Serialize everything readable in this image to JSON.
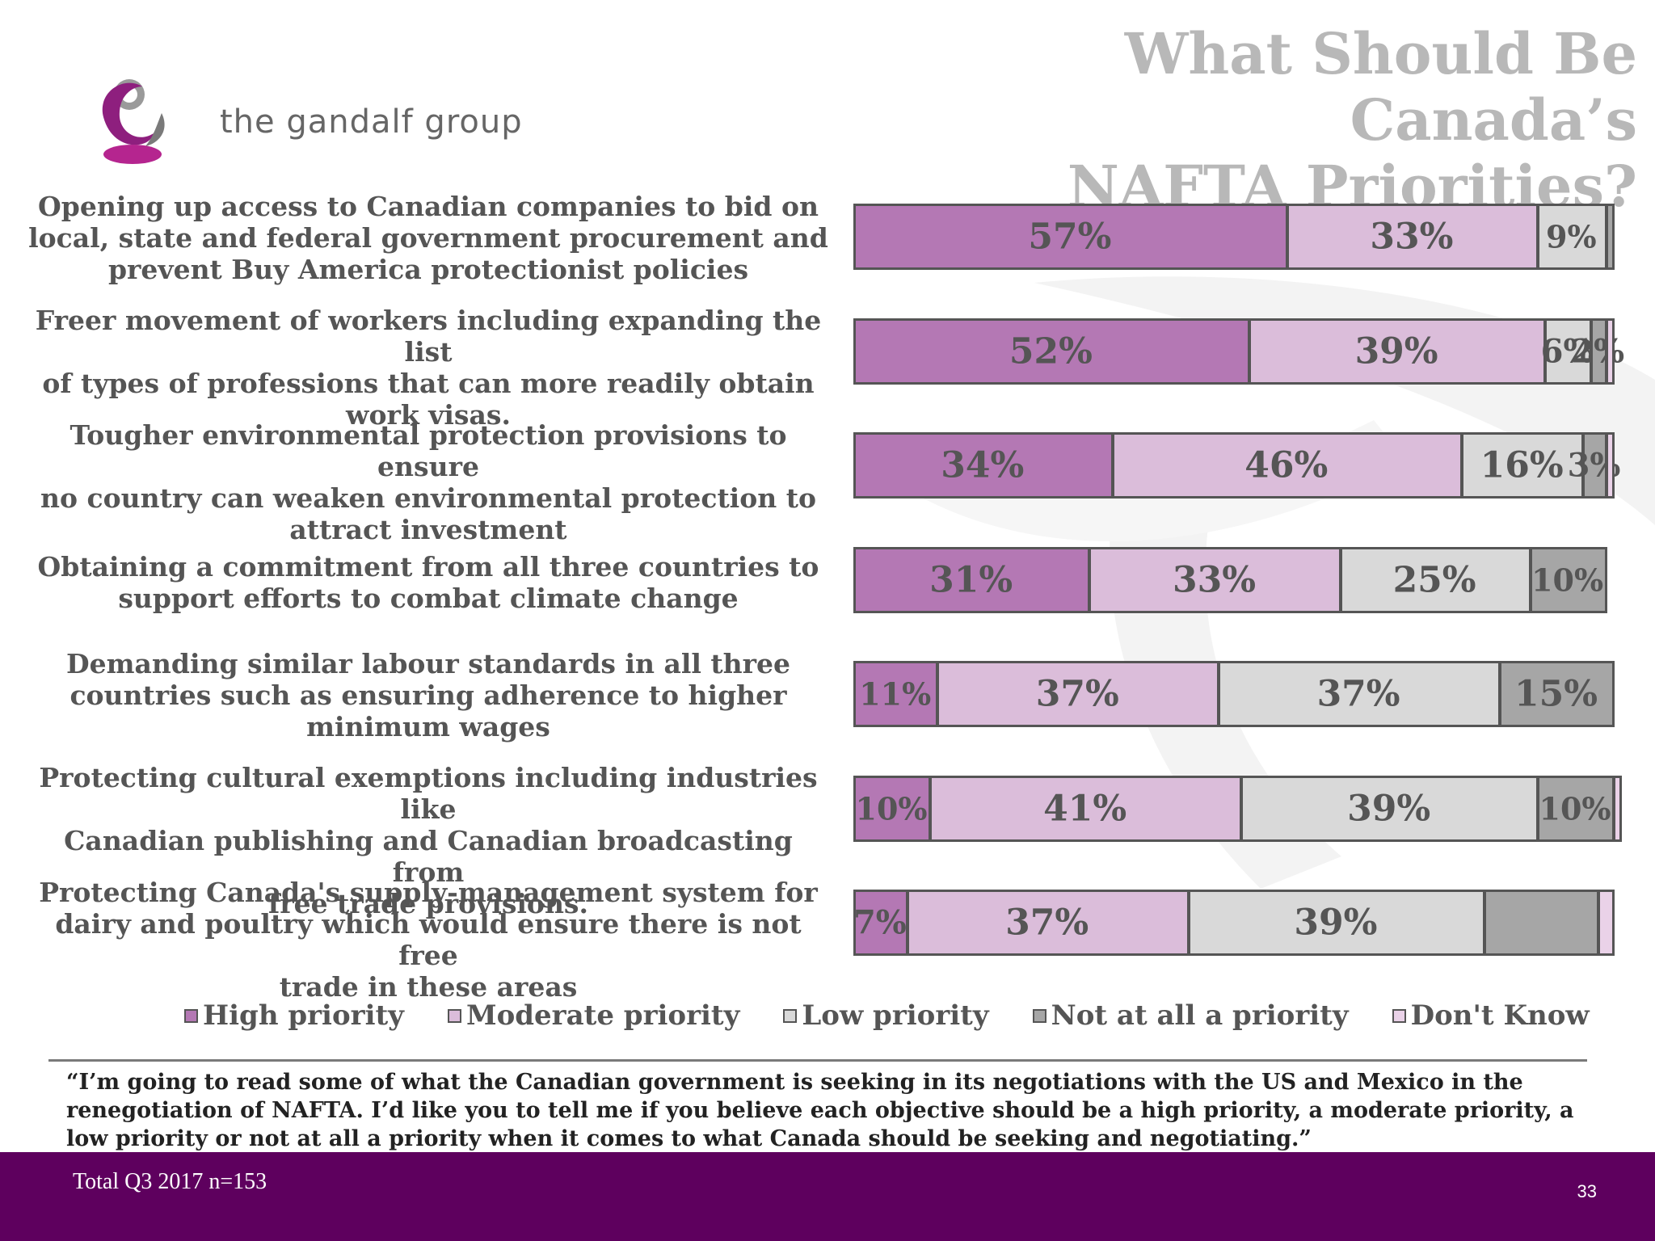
{
  "title_line1": "What Should Be Canada’s",
  "title_line2": "NAFTA Priorities?",
  "logo": {
    "text": "the gandalf group",
    "colors": {
      "purple": "#8e1f7e",
      "gray": "#7a7a7a",
      "magenta": "#b5258f"
    }
  },
  "chart_data": {
    "type": "bar",
    "orientation": "horizontal",
    "stacked": true,
    "categories": [
      [
        "Opening up access to Canadian companies to bid on",
        "local, state and federal government procurement and",
        "prevent Buy America protectionist policies"
      ],
      [
        "Freer movement of workers including expanding the list",
        "of types of professions that can more readily obtain",
        "work visas."
      ],
      [
        "Tougher environmental protection provisions to ensure",
        "no country can weaken environmental protection to",
        "attract investment"
      ],
      [
        "Obtaining a commitment from all three countries to",
        "support efforts to combat climate change"
      ],
      [
        "Demanding similar labour standards in all three",
        "countries such as ensuring adherence to higher",
        "minimum wages"
      ],
      [
        "Protecting cultural exemptions including industries like",
        "Canadian publishing and Canadian broadcasting from",
        "free trade provisions."
      ],
      [
        "Protecting Canada's supply-management system for",
        "dairy and poultry which would ensure there is not free",
        "trade in these areas"
      ]
    ],
    "series": [
      {
        "name": "High priority",
        "color": "#b478b4",
        "values": [
          57,
          52,
          34,
          31,
          11,
          10,
          7
        ],
        "labels": [
          "57%",
          "52%",
          "34%",
          "31%",
          "11%",
          "10%",
          "7%"
        ]
      },
      {
        "name": "Moderate priority",
        "color": "#dbbdda",
        "values": [
          33,
          39,
          46,
          33,
          37,
          41,
          37
        ],
        "labels": [
          "33%",
          "39%",
          "46%",
          "33%",
          "37%",
          "41%",
          "37%"
        ]
      },
      {
        "name": "Low priority",
        "color": "#d9d9d9",
        "values": [
          9,
          6,
          16,
          25,
          37,
          39,
          39
        ],
        "labels": [
          "9%",
          "6%",
          "16%",
          "25%",
          "37%",
          "39%",
          "39%"
        ]
      },
      {
        "name": "Not at all a priority",
        "color": "#a6a6a6",
        "values": [
          1,
          2,
          3,
          10,
          15,
          10,
          15
        ],
        "labels": [
          "",
          "2%",
          "3%",
          "10%",
          "15%",
          "10%",
          ""
        ]
      },
      {
        "name": "Don't Know",
        "color": "#ead2e8",
        "values": [
          0,
          1,
          1,
          0,
          0,
          1,
          2
        ],
        "labels": [
          "",
          "",
          "",
          "",
          "",
          "",
          ""
        ]
      }
    ],
    "xlim": [
      0,
      100
    ],
    "legend": "bottom",
    "grid": false
  },
  "question": "“I’m going to read some of what the Canadian government is seeking in its negotiations with the US and Mexico in the renegotiation of NAFTA. I’d like you to tell me if you believe each objective should be a high priority, a moderate priority, a low priority or not at all a priority when it comes to what Canada should be seeking and negotiating.”",
  "footer": {
    "note": "Total Q3 2017 n=153",
    "page_number": "33",
    "color": "#5e005e"
  }
}
